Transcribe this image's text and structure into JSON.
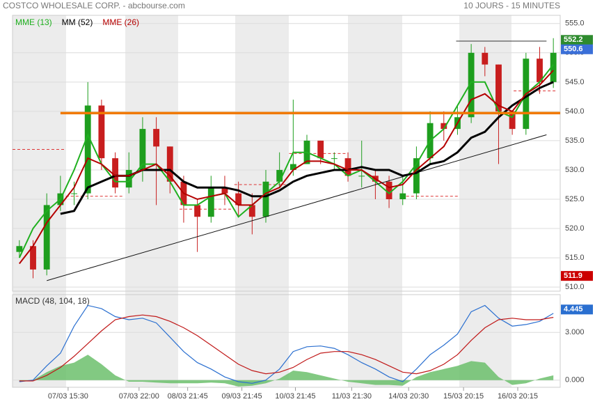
{
  "chart_data": [
    {
      "type": "candlestick",
      "title": "COSTCO WHOLESALE CORP. - abcbourse.com",
      "subtitle": "10 JOURS - 15 MINUTES",
      "xlim": [
        0,
        40
      ],
      "ylim": [
        509.3,
        556.4
      ],
      "yticks": [
        {
          "value": 510,
          "label": "510.0"
        },
        {
          "value": 515,
          "label": "515.0"
        },
        {
          "value": 520,
          "label": "520.0"
        },
        {
          "value": 525,
          "label": "525.0"
        },
        {
          "value": 530,
          "label": "530.0"
        },
        {
          "value": 535,
          "label": "535.0"
        },
        {
          "value": 540,
          "label": "540.0"
        },
        {
          "value": 545,
          "label": "545.0"
        },
        {
          "value": 550,
          "label": "550.0"
        },
        {
          "value": 555,
          "label": "555.0"
        }
      ],
      "grid": true,
      "up_color": "#1e9e1e",
      "down_color": "#c81e1e",
      "open": [
        516,
        517,
        513,
        524,
        526,
        526,
        541,
        532,
        527,
        530,
        537,
        534,
        528,
        524,
        522,
        527,
        526,
        524,
        522,
        528,
        530,
        531,
        535,
        532,
        532,
        529,
        529,
        528,
        525,
        526,
        532,
        538,
        537,
        539,
        550,
        548,
        540,
        537,
        549,
        545
      ],
      "high": [
        518,
        518,
        526,
        529,
        528,
        545,
        542,
        533,
        533,
        539,
        539,
        534,
        529,
        525,
        529,
        529,
        528,
        526,
        530,
        533,
        542,
        536,
        535,
        533,
        533,
        535,
        530,
        529,
        529,
        534,
        540,
        540,
        541,
        551.5,
        551,
        548,
        540,
        550,
        551,
        552.5
      ],
      "low": [
        515,
        511.5,
        512,
        523,
        524,
        525,
        530,
        526,
        526,
        528,
        524,
        526,
        521,
        516,
        521,
        524,
        522,
        519,
        521,
        527,
        529,
        531,
        531,
        530,
        528,
        527,
        525,
        523.5,
        524,
        525,
        531,
        535,
        536,
        538,
        546,
        531,
        536,
        536,
        543,
        544
      ],
      "close": [
        517,
        513,
        524,
        526,
        526,
        541,
        532,
        527,
        530,
        537,
        534,
        528,
        524,
        522,
        527,
        526,
        524,
        522,
        528,
        530,
        531,
        535,
        532,
        532,
        529,
        529,
        528,
        525,
        526,
        532,
        538,
        537,
        539,
        550,
        548,
        540,
        537,
        549,
        545,
        550
      ],
      "series": [
        {
          "name": "MME (13)",
          "color": "#1fb01f",
          "values": [
            515,
            520,
            523,
            525,
            530,
            536,
            531,
            528,
            528,
            531,
            531,
            528,
            524,
            524,
            525.5,
            526,
            522,
            524,
            526,
            528,
            533,
            533,
            532,
            531,
            529,
            530,
            528,
            526,
            528,
            531,
            535,
            537,
            541,
            545,
            545,
            540,
            539,
            543,
            545,
            548
          ]
        },
        {
          "name": "MM (52)",
          "color": "#000000",
          "values": [
            null,
            null,
            null,
            522.5,
            523,
            527,
            528,
            529,
            529,
            530,
            530,
            530,
            528,
            527,
            527,
            527,
            526.5,
            525.5,
            525.5,
            526.5,
            528,
            529,
            529.5,
            530,
            530,
            530.5,
            530,
            530,
            529,
            529.5,
            531,
            531.5,
            533,
            535.5,
            536.5,
            539,
            541,
            542.5,
            544,
            545
          ]
        },
        {
          "name": "MME (26)",
          "color": "#b50000",
          "values": [
            514,
            517,
            521,
            524,
            527,
            532,
            531,
            529,
            529,
            530,
            531,
            529,
            526,
            525,
            525.5,
            526,
            524,
            524,
            526,
            527,
            530,
            531.5,
            531.5,
            531,
            530,
            530,
            528.5,
            527,
            527.5,
            530,
            532,
            534,
            538,
            542,
            543,
            541,
            540,
            543,
            544.5,
            547
          ]
        }
      ],
      "lines": [
        {
          "x": [
            3.5,
            40
          ],
          "y": [
            539.7,
            539.7
          ],
          "color": "#f07800"
        },
        {
          "x": [
            32.4,
            39
          ],
          "y": [
            552,
            552
          ],
          "color": "#333333"
        },
        {
          "x": [
            2.5,
            39
          ],
          "y": [
            511.1,
            536
          ],
          "color": "#111111"
        }
      ],
      "level_color": "#dd3333",
      "levels": [
        {
          "x": [
            0,
            3.9
          ],
          "y": 533.5
        },
        {
          "x": [
            3.9,
            8.1
          ],
          "y": 525.5
        },
        {
          "x": [
            12.2,
            16.2
          ],
          "y": 523.3
        },
        {
          "x": [
            16.2,
            20.2
          ],
          "y": 527.5
        },
        {
          "x": [
            20.2,
            24.5
          ],
          "y": 532.8
        },
        {
          "x": [
            28.4,
            32.6
          ],
          "y": 525.5
        },
        {
          "x": [
            36.6,
            39.7
          ],
          "y": 543.5
        }
      ],
      "tags": [
        {
          "value": 552.2,
          "color": "#2e8b2e"
        },
        {
          "value": 550.6,
          "color": "#3a6fd8"
        },
        {
          "value": 511.9,
          "color": "#cc0000"
        }
      ]
    },
    {
      "type": "line",
      "title": "MACD (48, 104, 18)",
      "xlim": [
        0,
        40
      ],
      "xticks": [
        {
          "value": 4.06,
          "label": "07/03 15:30"
        },
        {
          "value": 9.24,
          "label": "07/03 22:00"
        },
        {
          "value": 12.79,
          "label": "08/03 21:45"
        },
        {
          "value": 16.75,
          "label": "09/03 21:45"
        },
        {
          "value": 20.66,
          "label": "10/03 21:45"
        },
        {
          "value": 24.77,
          "label": "11/03 21:30"
        },
        {
          "value": 28.93,
          "label": "14/03 20:30"
        },
        {
          "value": 32.94,
          "label": "15/03 20:15"
        },
        {
          "value": 36.9,
          "label": "16/03 20:15"
        }
      ],
      "ylim": [
        -0.45,
        5.38
      ],
      "yticks": [
        {
          "value": 0,
          "label": "0.000"
        },
        {
          "value": 3,
          "label": "3.000"
        }
      ],
      "grid": true,
      "series": [
        {
          "type": "area",
          "color": "#6cbf6c",
          "values": [
            -0.1,
            0,
            0.5,
            0.9,
            1.1,
            1.6,
            1.0,
            0.3,
            -0.1,
            -0.1,
            -0.15,
            -0.2,
            -0.2,
            -0.2,
            -0.15,
            -0.2,
            -0.4,
            -0.35,
            -0.2,
            0.1,
            0.6,
            0.5,
            0.3,
            0.1,
            -0.1,
            -0.2,
            -0.3,
            -0.3,
            -0.35,
            0.2,
            0.5,
            0.7,
            0.9,
            1.2,
            1.1,
            0.2,
            -0.3,
            -0.2,
            0.1,
            0.3
          ]
        },
        {
          "type": "line",
          "color": "#2a6fd0",
          "values": [
            -0.1,
            0,
            0.9,
            1.7,
            3.4,
            4.7,
            4.5,
            4.0,
            3.8,
            3.9,
            3.6,
            2.7,
            1.8,
            1.1,
            0.7,
            0.2,
            -0.1,
            -0.2,
            0,
            0.7,
            1.8,
            2.1,
            2.15,
            2.0,
            1.6,
            1.1,
            0.7,
            0.2,
            -0.1,
            0.7,
            1.6,
            2.2,
            2.9,
            4.3,
            4.7,
            3.9,
            3.4,
            3.5,
            3.7,
            4.2
          ]
        },
        {
          "type": "line",
          "color": "#c01818",
          "values": [
            -0.05,
            -0.05,
            0.3,
            0.8,
            1.5,
            2.3,
            3.1,
            3.8,
            4.0,
            4.1,
            4.0,
            3.7,
            3.3,
            2.8,
            2.2,
            1.6,
            1.0,
            0.6,
            0.4,
            0.5,
            0.8,
            1.3,
            1.7,
            1.8,
            1.8,
            1.6,
            1.3,
            0.9,
            0.5,
            0.4,
            0.6,
            1.0,
            1.6,
            2.5,
            3.3,
            3.8,
            3.9,
            3.8,
            3.8,
            3.95
          ]
        }
      ],
      "tags": [
        {
          "value": 4.445,
          "color": "#2a6fd0"
        }
      ]
    }
  ]
}
